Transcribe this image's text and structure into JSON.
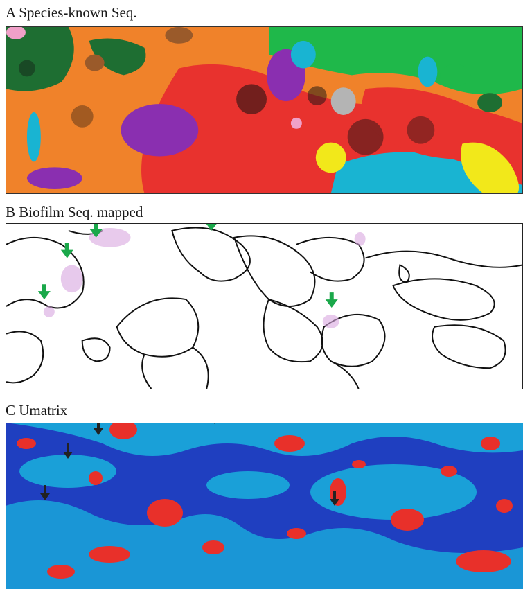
{
  "figure": {
    "panels": [
      {
        "id": "A",
        "label": "A Species-known Seq."
      },
      {
        "id": "B",
        "label": "B Biofilm Seq. mapped",
        "arrow_color": "#1aa84a"
      },
      {
        "id": "C",
        "label": "C Umatrix",
        "arrow_color": "#222222"
      }
    ]
  },
  "colors": {
    "orange": "#f0822a",
    "red": "#e8322e",
    "purple": "#8a2fb0",
    "green": "#1fb84a",
    "dark_green": "#1e6e32",
    "cyan": "#19b4d2",
    "yellow": "#f2e81a",
    "gray": "#b4b4b4",
    "brown": "#9a5a2a",
    "pink": "#f0a0c8",
    "umatrix_blue": "#1f3fc0",
    "umatrix_cyan": "#1aa0d8",
    "umatrix_red": "#e8302a"
  }
}
